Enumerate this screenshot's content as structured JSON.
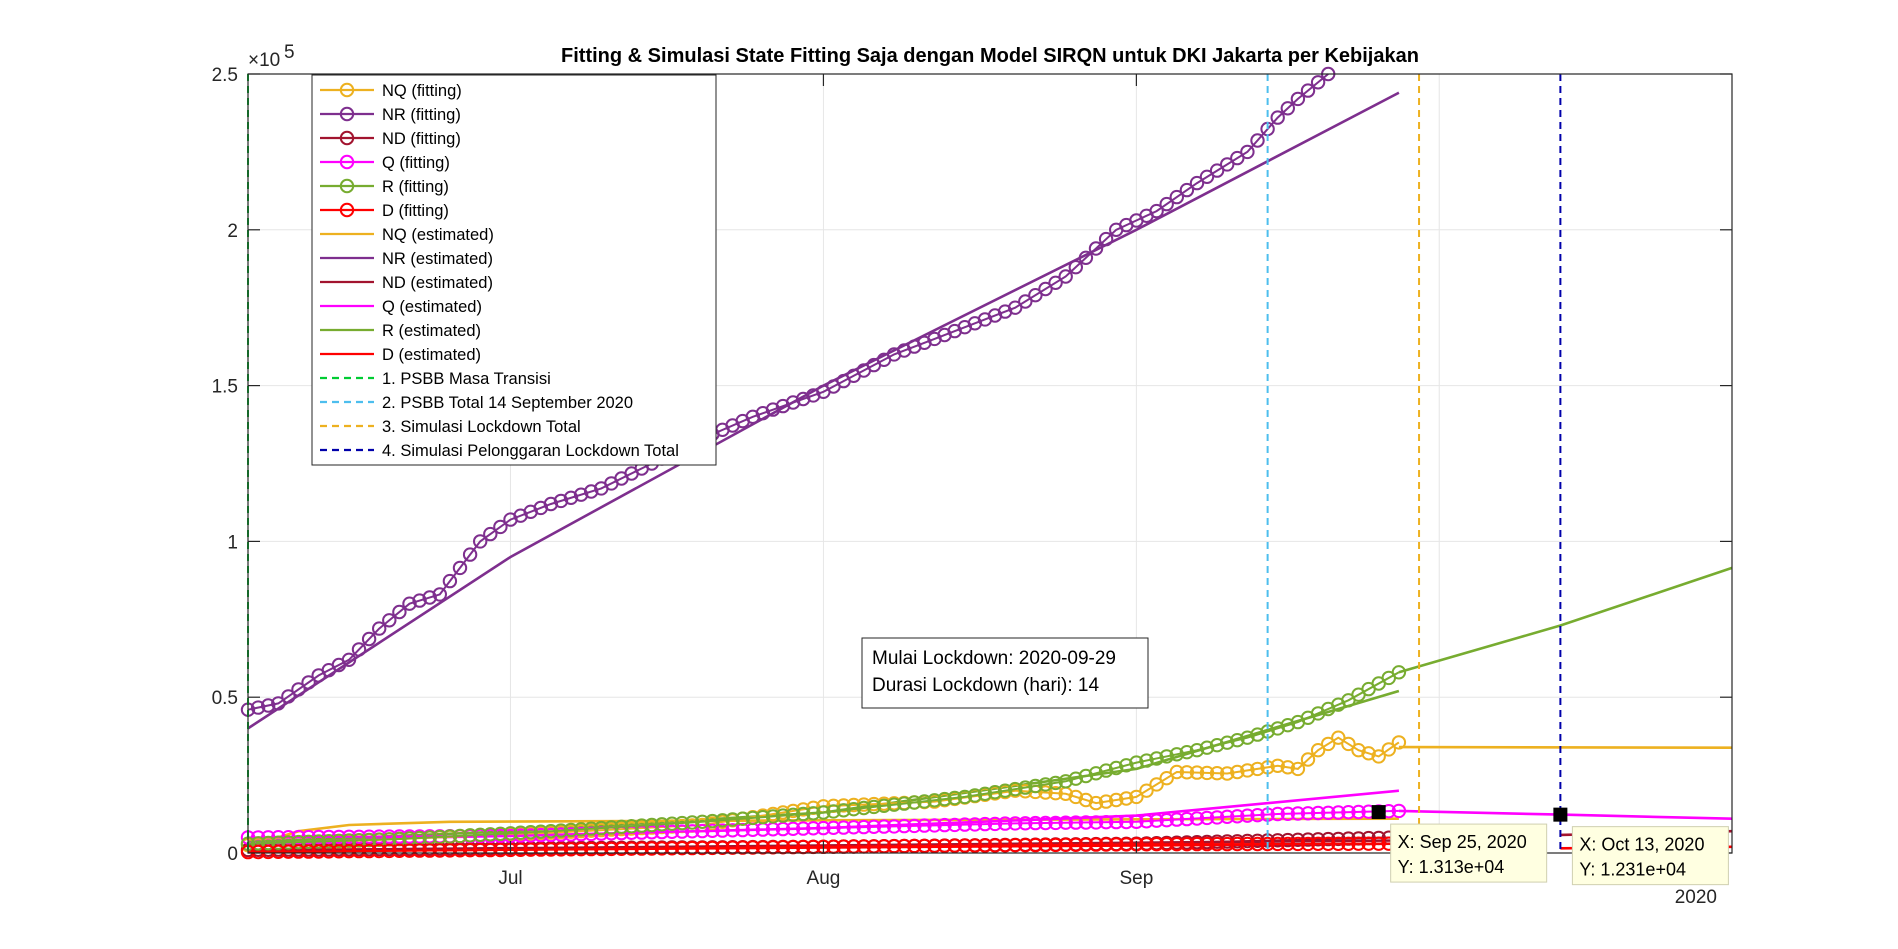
{
  "chart_data": {
    "type": "line",
    "title": "Fitting & Simulasi State Fitting Saja dengan Model SIRQN untuk DKI Jakarta per Kebijakan",
    "xlabel": "",
    "ylabel": "",
    "x_start": "2020-06-05",
    "xlim": [
      "2020-06-05",
      "2020-10-30"
    ],
    "ylim": [
      0,
      250000
    ],
    "y_exponent_label": "×10^5",
    "y_exponent_base": "×10",
    "y_exponent_power": "5",
    "y_ticks": [
      0,
      50000,
      100000,
      150000,
      200000,
      250000
    ],
    "y_tick_labels": [
      "0",
      "0.5",
      "1",
      "1.5",
      "2",
      "2.5"
    ],
    "x_ticks": [
      {
        "label": "Jul",
        "date": "2020-07-01"
      },
      {
        "label": "Aug",
        "date": "2020-08-01"
      },
      {
        "label": "Sep",
        "date": "2020-09-01"
      }
    ],
    "x_year_label": "2020",
    "grid": true,
    "legend_position": "top-left (inside)",
    "fitting_end_date": "2020-09-27",
    "estimated_end_date": "2020-09-27",
    "series": [
      {
        "name": "NQ (fitting)",
        "style": "line-circle",
        "color": "#EDB120",
        "kind": "fit",
        "points": [
          [
            "2020-06-05",
            2500
          ],
          [
            "2020-06-20",
            4500
          ],
          [
            "2020-07-05",
            6500
          ],
          [
            "2020-07-20",
            9000
          ],
          [
            "2020-08-01",
            15000
          ],
          [
            "2020-08-12",
            16500
          ],
          [
            "2020-08-20",
            20000
          ],
          [
            "2020-08-25",
            19000
          ],
          [
            "2020-08-28",
            16000
          ],
          [
            "2020-09-01",
            18000
          ],
          [
            "2020-09-05",
            26000
          ],
          [
            "2020-09-10",
            25500
          ],
          [
            "2020-09-15",
            28000
          ],
          [
            "2020-09-17",
            27000
          ],
          [
            "2020-09-19",
            33000
          ],
          [
            "2020-09-21",
            37000
          ],
          [
            "2020-09-23",
            33000
          ],
          [
            "2020-09-25",
            31000
          ],
          [
            "2020-09-27",
            35500
          ]
        ]
      },
      {
        "name": "NR (fitting)",
        "style": "line-circle",
        "color": "#7E2F8E",
        "kind": "fit",
        "points": [
          [
            "2020-06-05",
            46000
          ],
          [
            "2020-06-08",
            48000
          ],
          [
            "2020-06-12",
            57000
          ],
          [
            "2020-06-15",
            62000
          ],
          [
            "2020-06-18",
            72000
          ],
          [
            "2020-06-21",
            80000
          ],
          [
            "2020-06-24",
            83000
          ],
          [
            "2020-06-28",
            100000
          ],
          [
            "2020-07-01",
            107000
          ],
          [
            "2020-07-05",
            112000
          ],
          [
            "2020-07-10",
            117000
          ],
          [
            "2020-07-15",
            125000
          ],
          [
            "2020-07-20",
            133000
          ],
          [
            "2020-07-25",
            140000
          ],
          [
            "2020-08-01",
            148000
          ],
          [
            "2020-08-08",
            160000
          ],
          [
            "2020-08-12",
            165000
          ],
          [
            "2020-08-16",
            170000
          ],
          [
            "2020-08-20",
            175000
          ],
          [
            "2020-08-25",
            185000
          ],
          [
            "2020-08-30",
            200000
          ],
          [
            "2020-09-03",
            206000
          ],
          [
            "2020-09-07",
            215000
          ],
          [
            "2020-09-12",
            225000
          ],
          [
            "2020-09-15",
            236000
          ],
          [
            "2020-09-17",
            242000
          ],
          [
            "2020-09-20",
            250000
          ]
        ]
      },
      {
        "name": "ND (fitting)",
        "style": "line-circle",
        "color": "#A2142F",
        "kind": "fit",
        "points": [
          [
            "2020-06-05",
            1000
          ],
          [
            "2020-07-01",
            1500
          ],
          [
            "2020-08-01",
            2000
          ],
          [
            "2020-09-01",
            3000
          ],
          [
            "2020-09-27",
            5000
          ]
        ]
      },
      {
        "name": "Q (fitting)",
        "style": "line-circle",
        "color": "#FF00FF",
        "kind": "fit",
        "points": [
          [
            "2020-06-05",
            5000
          ],
          [
            "2020-07-01",
            5500
          ],
          [
            "2020-08-01",
            8000
          ],
          [
            "2020-08-20",
            9500
          ],
          [
            "2020-09-01",
            10000
          ],
          [
            "2020-09-15",
            12500
          ],
          [
            "2020-09-27",
            13500
          ]
        ]
      },
      {
        "name": "R (fitting)",
        "style": "line-circle",
        "color": "#77AC30",
        "kind": "fit",
        "points": [
          [
            "2020-06-05",
            3000
          ],
          [
            "2020-06-20",
            4500
          ],
          [
            "2020-07-05",
            7000
          ],
          [
            "2020-07-20",
            10000
          ],
          [
            "2020-08-01",
            13000
          ],
          [
            "2020-08-15",
            18000
          ],
          [
            "2020-08-25",
            23000
          ],
          [
            "2020-09-01",
            29000
          ],
          [
            "2020-09-07",
            33000
          ],
          [
            "2020-09-12",
            37000
          ],
          [
            "2020-09-17",
            42000
          ],
          [
            "2020-09-22",
            49000
          ],
          [
            "2020-09-27",
            58000
          ]
        ]
      },
      {
        "name": "D (fitting)",
        "style": "line-circle",
        "color": "#FF0000",
        "kind": "fit",
        "points": [
          [
            "2020-06-05",
            300
          ],
          [
            "2020-07-01",
            1000
          ],
          [
            "2020-08-01",
            2000
          ],
          [
            "2020-09-01",
            2800
          ],
          [
            "2020-09-27",
            3000
          ]
        ]
      },
      {
        "name": "NQ (estimated)",
        "style": "line",
        "color": "#EDB120",
        "kind": "est",
        "points": [
          [
            "2020-06-05",
            2000
          ],
          [
            "2020-06-10",
            7000
          ],
          [
            "2020-06-15",
            9000
          ],
          [
            "2020-06-25",
            10000
          ],
          [
            "2020-08-01",
            10500
          ],
          [
            "2020-09-01",
            10800
          ],
          [
            "2020-09-27",
            11000
          ]
        ]
      },
      {
        "name": "NR (estimated)",
        "style": "line",
        "color": "#7E2F8E",
        "kind": "est",
        "points": [
          [
            "2020-06-05",
            40000
          ],
          [
            "2020-07-01",
            95000
          ],
          [
            "2020-08-01",
            150000
          ],
          [
            "2020-09-01",
            200000
          ],
          [
            "2020-09-27",
            244000
          ]
        ]
      },
      {
        "name": "ND (estimated)",
        "style": "line",
        "color": "#A2142F",
        "kind": "est",
        "points": [
          [
            "2020-06-05",
            800
          ],
          [
            "2020-09-27",
            4000
          ]
        ]
      },
      {
        "name": "Q (estimated)",
        "style": "line",
        "color": "#FF00FF",
        "kind": "est",
        "points": [
          [
            "2020-06-05",
            4000
          ],
          [
            "2020-07-01",
            5500
          ],
          [
            "2020-08-01",
            8000
          ],
          [
            "2020-09-01",
            12000
          ],
          [
            "2020-09-27",
            20000
          ]
        ]
      },
      {
        "name": "R (estimated)",
        "style": "line",
        "color": "#77AC30",
        "kind": "est",
        "points": [
          [
            "2020-06-05",
            3500
          ],
          [
            "2020-07-01",
            7000
          ],
          [
            "2020-08-01",
            13000
          ],
          [
            "2020-09-01",
            27000
          ],
          [
            "2020-09-27",
            52000
          ]
        ]
      },
      {
        "name": "D (estimated)",
        "style": "line",
        "color": "#FF0000",
        "kind": "est",
        "points": [
          [
            "2020-06-05",
            500
          ],
          [
            "2020-09-27",
            3000
          ]
        ]
      }
    ],
    "simulation_curves": [
      {
        "color": "#EDB120",
        "points": [
          [
            "2020-09-27",
            34000
          ],
          [
            "2020-10-30",
            33800
          ]
        ]
      },
      {
        "color": "#77AC30",
        "points": [
          [
            "2020-09-27",
            58000
          ],
          [
            "2020-10-13",
            73000
          ],
          [
            "2020-10-30",
            91500
          ]
        ]
      },
      {
        "color": "#FF00FF",
        "points": [
          [
            "2020-09-27",
            13500
          ],
          [
            "2020-10-13",
            12310
          ],
          [
            "2020-10-30",
            11000
          ]
        ]
      },
      {
        "color": "#A2142F",
        "points": [
          [
            "2020-10-13",
            5800
          ],
          [
            "2020-10-30",
            7000
          ]
        ]
      },
      {
        "color": "#FF0000",
        "points": [
          [
            "2020-10-13",
            1500
          ],
          [
            "2020-10-30",
            2000
          ]
        ]
      }
    ],
    "policy_lines": [
      {
        "name": "1. PSBB Masa Transisi",
        "date": "2020-06-05",
        "color": "#00CC33"
      },
      {
        "name": "2. PSBB Total 14 September 2020",
        "date": "2020-09-14",
        "color": "#4DBEEE"
      },
      {
        "name": "3. Simulasi Lockdown Total",
        "date": "2020-09-29",
        "color": "#EDB120"
      },
      {
        "name": "4. Simulasi Pelonggaran Lockdown Total",
        "date": "2020-10-13",
        "color": "#0000AA"
      }
    ],
    "annotations": {
      "lockdown_box": [
        "Mulai Lockdown: 2020-09-29",
        "Durasi Lockdown (hari): 14"
      ],
      "datatips": [
        {
          "x": "2020-09-25",
          "y": 13130,
          "line1": "X: Sep 25, 2020",
          "line2": "Y: 1.313e+04"
        },
        {
          "x": "2020-10-13",
          "y": 12310,
          "line1": "X: Oct 13, 2020",
          "line2": "Y: 1.231e+04"
        }
      ]
    }
  }
}
